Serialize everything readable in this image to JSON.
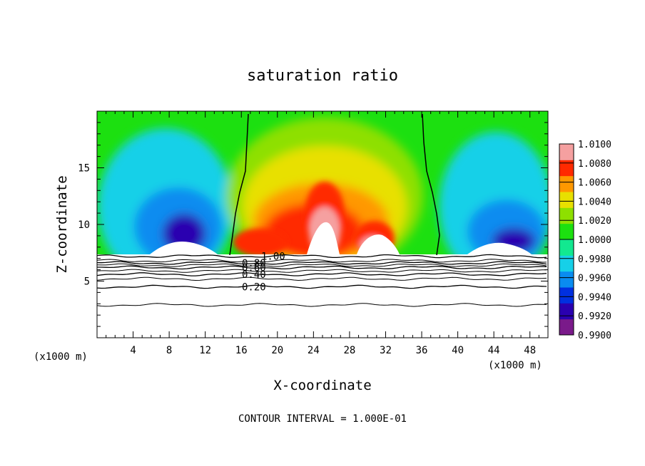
{
  "chart_data": {
    "type": "heatmap",
    "title": "saturation ratio",
    "xlabel": "X-coordinate",
    "ylabel": "Z-coordinate",
    "x_unit_label": "(x1000 m)",
    "z_unit_label": "(x1000 m)",
    "xlim": [
      0,
      50
    ],
    "ylim": [
      0,
      20
    ],
    "x_ticks": [
      4,
      8,
      12,
      16,
      20,
      24,
      28,
      32,
      36,
      40,
      44,
      48
    ],
    "x_tick_labels": [
      "4",
      "8",
      "12",
      "16",
      "20",
      "24",
      "28",
      "32",
      "36",
      "40",
      "44",
      "48"
    ],
    "y_ticks": [
      5,
      10,
      15
    ],
    "y_tick_labels": [
      "5",
      "10",
      "15"
    ],
    "colorbar": {
      "min": 0.99,
      "max": 1.01,
      "labels": [
        "1.0100",
        "1.0080",
        "1.0060",
        "1.0040",
        "1.0020",
        "1.0000",
        "0.9980",
        "0.9960",
        "0.9940",
        "0.9920",
        "0.9900"
      ],
      "colors": [
        "#7a1a8a",
        "#2a00b0",
        "#0030e0",
        "#0a8cf0",
        "#16d0e8",
        "#12e890",
        "#1ce010",
        "#8ee000",
        "#e8e000",
        "#ff9800",
        "#ff2a00",
        "#f5a0a0"
      ]
    },
    "contour_lines": [
      {
        "level": 0.2,
        "label": "0.20",
        "z": 4.5
      },
      {
        "level": 0.4,
        "label": "0.40",
        "z": 5.6
      },
      {
        "level": 0.6,
        "label": "0.60",
        "z": 6.2
      },
      {
        "level": 0.8,
        "label": "0.80",
        "z": 6.6
      },
      {
        "level": 1.0,
        "label": "1.00",
        "z": 7.2
      }
    ],
    "unlabeled_contour_z": [
      2.9,
      5.2,
      5.9,
      6.4,
      6.8
    ],
    "saturation_contour_x": [
      15.0,
      37.0
    ],
    "cloud_base_z": 7.2
  },
  "footer": {
    "contour_interval": "CONTOUR INTERVAL = 1.000E-01"
  }
}
